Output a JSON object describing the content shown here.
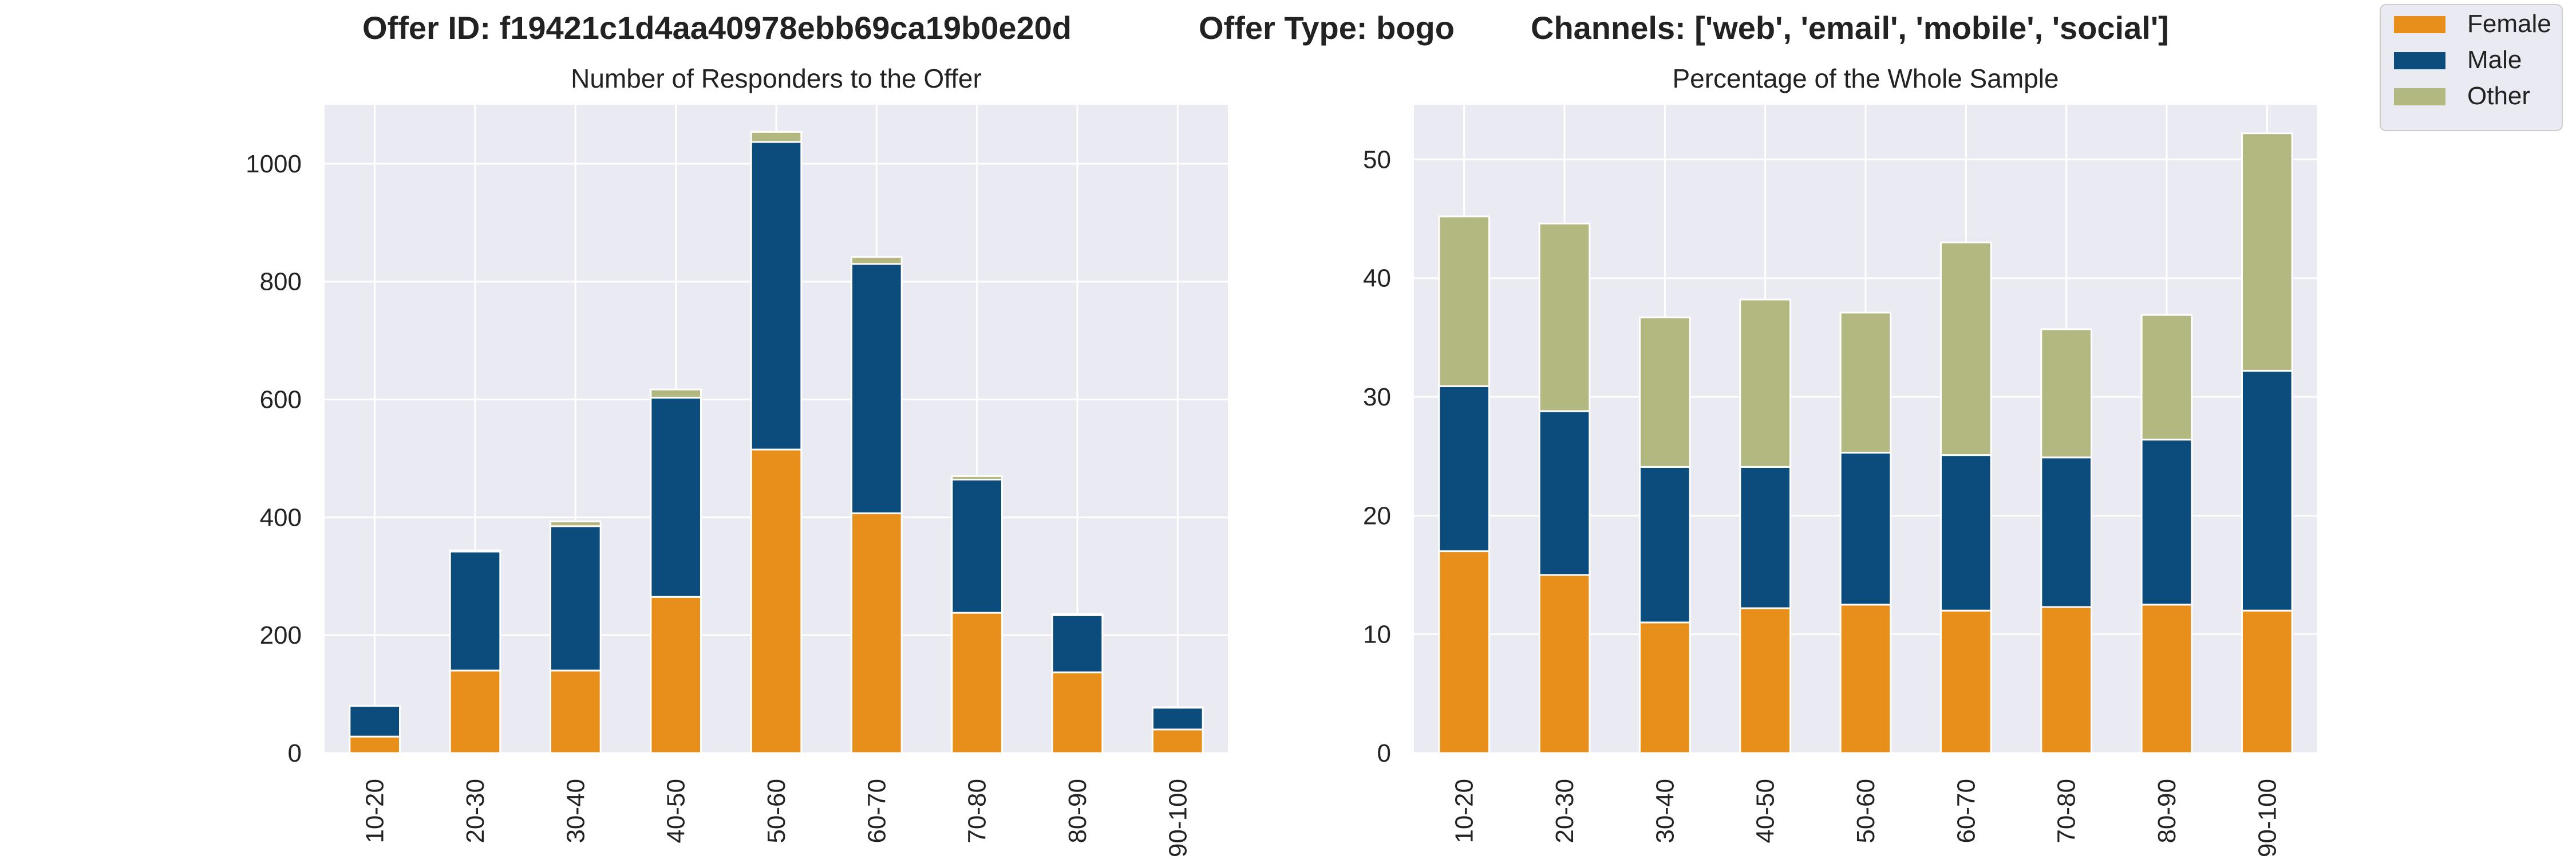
{
  "header": {
    "offer_id": "Offer ID: f19421c1d4aa40978ebb69ca19b0e20d",
    "offer_type": "Offer Type: bogo",
    "channels": "Channels: ['web', 'email', 'mobile', 'social']"
  },
  "legend": {
    "placement": "top-right",
    "entries": [
      {
        "name": "Female",
        "color": "#e88e1a"
      },
      {
        "name": "Male",
        "color": "#0b4c7c"
      },
      {
        "name": "Other",
        "color": "#b3b880"
      }
    ]
  },
  "style": {
    "plot_background": "#eaeaf2",
    "grid_color": "#ffffff"
  },
  "chart_data": [
    {
      "type": "bar",
      "stacked": true,
      "title": "Number of Responders to the Offer",
      "categories": [
        "10-20",
        "20-30",
        "30-40",
        "40-50",
        "50-60",
        "60-70",
        "70-80",
        "80-90",
        "90-100"
      ],
      "series": [
        {
          "name": "Female",
          "values": [
            28,
            140,
            140,
            265,
            515,
            407,
            238,
            137,
            40
          ]
        },
        {
          "name": "Male",
          "values": [
            52,
            202,
            245,
            338,
            522,
            423,
            226,
            97,
            37
          ]
        },
        {
          "name": "Other",
          "values": [
            0,
            2,
            8,
            14,
            17,
            12,
            6,
            2,
            1
          ]
        }
      ],
      "ylim": [
        0,
        1100
      ],
      "yticks": [
        0,
        200,
        400,
        600,
        800,
        1000
      ],
      "grid": true
    },
    {
      "type": "bar",
      "stacked": true,
      "title": "Percentage of the Whole Sample",
      "categories": [
        "10-20",
        "20-30",
        "30-40",
        "40-50",
        "50-60",
        "60-70",
        "70-80",
        "80-90",
        "90-100"
      ],
      "series": [
        {
          "name": "Female",
          "values": [
            17.0,
            15.0,
            11.0,
            12.2,
            12.5,
            12.0,
            12.3,
            12.5,
            12.0
          ]
        },
        {
          "name": "Male",
          "values": [
            13.9,
            13.8,
            13.1,
            11.9,
            12.8,
            13.1,
            12.6,
            13.9,
            20.2
          ]
        },
        {
          "name": "Other",
          "values": [
            14.3,
            15.8,
            12.6,
            14.1,
            11.8,
            17.9,
            10.8,
            10.5,
            20.0
          ]
        }
      ],
      "ylim": [
        0,
        54.6
      ],
      "yticks": [
        0,
        10,
        20,
        30,
        40,
        50
      ],
      "grid": true
    }
  ]
}
